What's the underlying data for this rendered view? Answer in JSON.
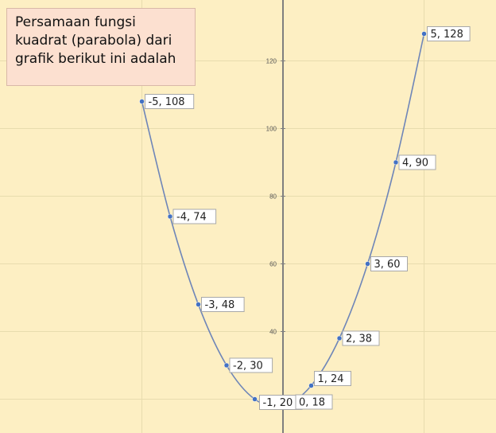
{
  "question": {
    "text": "Persamaan fungsi\nkuadrat (parabola) dari\ngrafik berikut ini adalah"
  },
  "colors": {
    "background": "#fdefc3",
    "grid": "#e8dcae",
    "axis": "#7f7f7f",
    "series": "#6f86b8",
    "marker": "#4472c4"
  },
  "chart_data": {
    "type": "scatter",
    "x": [
      -5,
      -4,
      -3,
      -2,
      -1,
      0,
      1,
      2,
      3,
      4,
      5
    ],
    "series": [
      {
        "values": [
          108,
          74,
          48,
          30,
          20,
          18,
          24,
          38,
          60,
          90,
          128
        ]
      }
    ],
    "data_labels": [
      "-5, 108",
      "-4, 74",
      "-3, 48",
      "-2, 30",
      "-1, 20",
      "0, 18",
      "1, 24",
      "2, 38",
      "3, 60",
      "4, 90",
      "5, 128"
    ],
    "y_ticks": [
      "20",
      "40",
      "60",
      "80",
      "100",
      "120"
    ],
    "xlim": [
      -10,
      10
    ],
    "ylim": [
      10,
      135
    ],
    "grid": true,
    "title": "",
    "xlabel": "",
    "ylabel": ""
  }
}
